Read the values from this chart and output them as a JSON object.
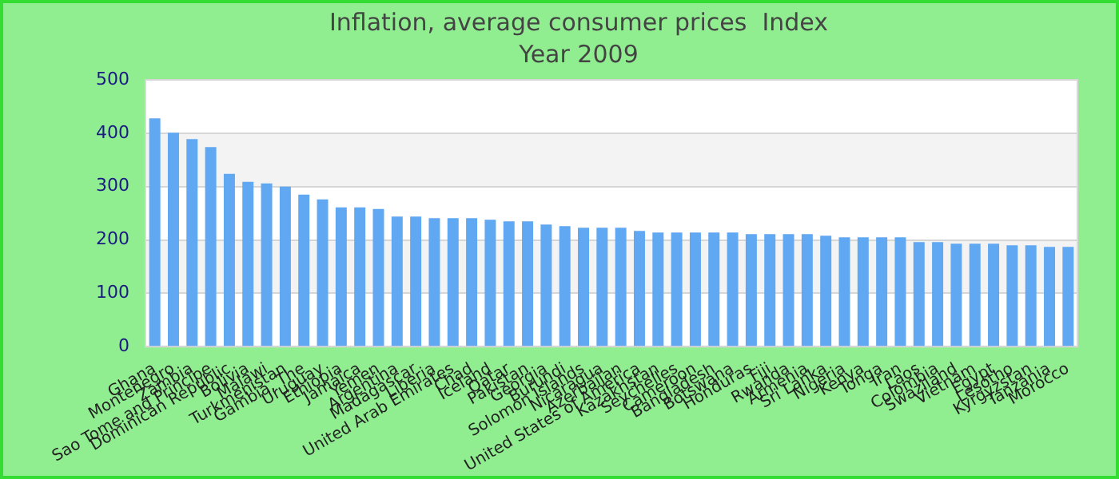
{
  "chart_data": {
    "type": "bar",
    "title": "Inflation, average consumer prices  Index",
    "subtitle": "Year 2009",
    "categories": [
      "Ghana",
      "Montenegro",
      "Zambia",
      "Sao Tome and Principe",
      "Dominican Republic",
      "Bolivia",
      "Malawi",
      "Turkmenistan",
      "Gambia, The",
      "Uruguay",
      "Ethiopia",
      "Jamaica",
      "Yemen",
      "Argentina",
      "Madagascar",
      "Liberia",
      "United Arab Emirates",
      "Chad",
      "Iceland",
      "Qatar",
      "Pakistan",
      "Georgia",
      "Burundi",
      "Solomon Islands",
      "Nicaragua",
      "Azerbaijan",
      "United States of America",
      "Kazakhstan",
      "Seychelles",
      "Cameroon",
      "Bangladesh",
      "Botswana",
      "Honduras",
      "Fiji",
      "Rwanda",
      "Armenia",
      "Sri Lanka",
      "Nigeria",
      "Kenya",
      "Tonga",
      "Iran",
      "Laos",
      "Colombia",
      "Swaziland",
      "Vietnam",
      "Egypt",
      "Lesotho",
      "Kyrgyzstan",
      "Tanzania",
      "Morocco"
    ],
    "values": [
      428,
      401,
      389,
      374,
      324,
      309,
      306,
      300,
      285,
      276,
      261,
      261,
      258,
      244,
      244,
      241,
      241,
      241,
      238,
      235,
      235,
      229,
      226,
      223,
      223,
      223,
      217,
      214,
      214,
      214,
      214,
      214,
      211,
      211,
      211,
      211,
      208,
      205,
      205,
      205,
      205,
      196,
      196,
      193,
      193,
      193,
      190,
      190,
      187,
      187
    ],
    "color": "#61a8f2",
    "ylim": [
      0,
      500
    ],
    "yticks": [
      0,
      100,
      200,
      300,
      400,
      500
    ],
    "grid": "y"
  }
}
